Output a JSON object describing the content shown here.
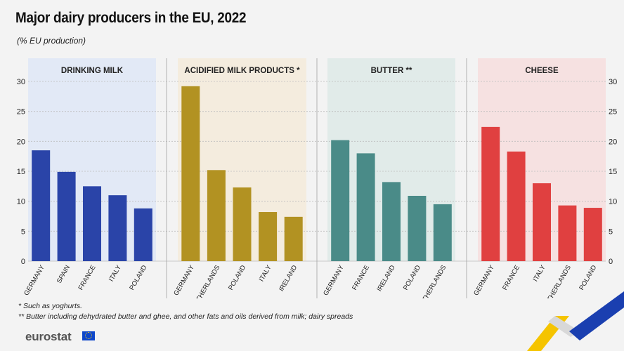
{
  "title": "Major dairy producers in the EU, 2022",
  "subtitle": "(% EU production)",
  "footnotes": [
    "*  Such as yoghurts.",
    "** Butter including dehydrated butter and ghee, and other fats and oils derived from milk; dairy spreads"
  ],
  "logo_text": "eurostat",
  "colors": {
    "background": "#f3f3f3",
    "gridline": "#bdbdbd",
    "axis": "#555555"
  },
  "chart_data": [
    {
      "type": "bar",
      "title": "DRINKING MILK",
      "categories": [
        "GERMANY",
        "SPAIN",
        "FRANCE",
        "ITALY",
        "POLAND"
      ],
      "values": [
        18.5,
        14.9,
        12.5,
        11.0,
        8.8
      ],
      "ylim": [
        0,
        30
      ],
      "yticks": [
        0,
        5,
        10,
        15,
        20,
        25,
        30
      ],
      "color": "#2a44a8",
      "panel_color": "#e2e9f6"
    },
    {
      "type": "bar",
      "title": "ACIDIFIED MILK PRODUCTS *",
      "categories": [
        "GERMANY",
        "NETHERLANDS",
        "POLAND",
        "ITALY",
        "IRELAND"
      ],
      "values": [
        29.2,
        15.2,
        12.3,
        8.2,
        7.4
      ],
      "ylim": [
        0,
        30
      ],
      "yticks": [
        0,
        5,
        10,
        15,
        20,
        25,
        30
      ],
      "color": "#b29222",
      "panel_color": "#f4ecde"
    },
    {
      "type": "bar",
      "title": "BUTTER **",
      "categories": [
        "GERMANY",
        "FRANCE",
        "IRELAND",
        "POLAND",
        "NETHERLANDS"
      ],
      "values": [
        20.2,
        18.0,
        13.2,
        10.9,
        9.5
      ],
      "ylim": [
        0,
        30
      ],
      "yticks": [
        0,
        5,
        10,
        15,
        20,
        25,
        30
      ],
      "color": "#4a8b88",
      "panel_color": "#e1ebe9"
    },
    {
      "type": "bar",
      "title": "CHEESE",
      "categories": [
        "GERMANY",
        "FRANCE",
        "ITALY",
        "NETHERLANDS",
        "POLAND"
      ],
      "values": [
        22.4,
        18.3,
        13.0,
        9.3,
        8.9
      ],
      "ylim": [
        0,
        30
      ],
      "yticks": [
        0,
        5,
        10,
        15,
        20,
        25,
        30
      ],
      "color": "#e04040",
      "panel_color": "#f6e1e1"
    }
  ]
}
